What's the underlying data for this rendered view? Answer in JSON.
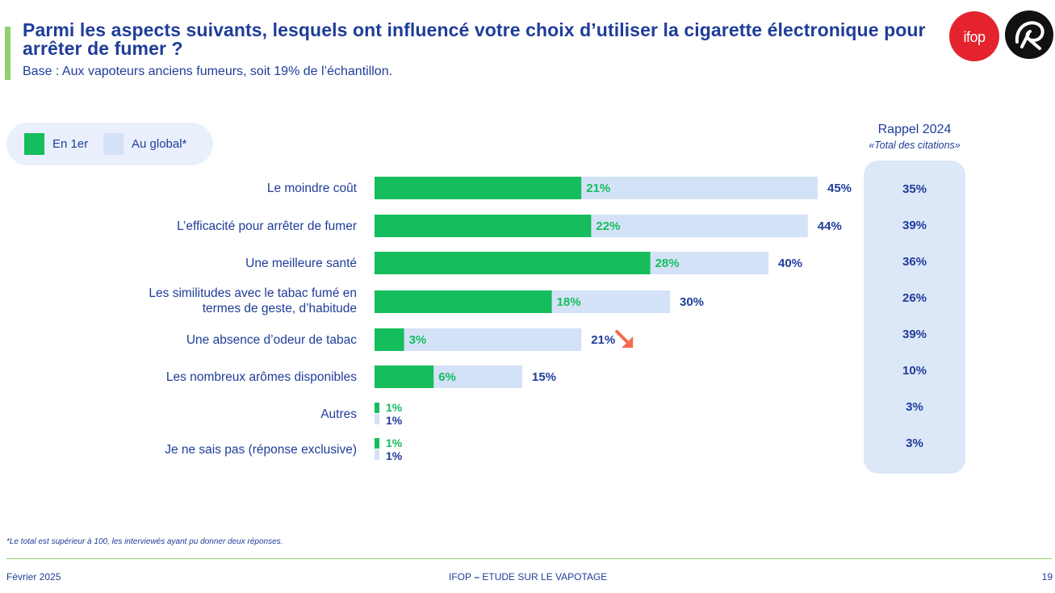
{
  "header": {
    "title": "Parmi les aspects suivants, lesquels ont influencé votre choix d’utiliser la cigarette électronique pour arrêter de fumer ?",
    "subtitle": "Base : Aux vapoteurs anciens fumeurs, soit 19% de l’échantillon.",
    "logo_text": "ifop"
  },
  "legend": {
    "first_label": "En 1er",
    "global_label": "Au global*"
  },
  "rappel": {
    "title": "Rappel 2024",
    "subtitle": "«Total des citations»",
    "values": [
      "35%",
      "39%",
      "36%",
      "26%",
      "39%",
      "10%",
      "3%",
      "3%"
    ]
  },
  "colors": {
    "first": "#15bd5d",
    "global": "#d4e2f7",
    "text": "#1f3d99",
    "first_label": "#15bd5d",
    "arrow": "#f26b4f",
    "accent": "#8fd16a"
  },
  "chart_data": {
    "type": "bar",
    "orientation": "horizontal",
    "title": "Parmi les aspects suivants, lesquels ont influencé votre choix d’utiliser la cigarette électronique pour arrêter de fumer ?",
    "xlabel": "",
    "ylabel": "",
    "xlim": [
      0,
      100
    ],
    "grid": false,
    "legend_position": "top-left",
    "categories": [
      [
        "Le moindre coût"
      ],
      [
        "L’efficacité pour arrêter de fumer"
      ],
      [
        "Une meilleure santé"
      ],
      [
        "Les similitudes avec le tabac fumé en",
        "termes de geste, d’habitude"
      ],
      [
        "Une absence d’odeur de tabac"
      ],
      [
        "Les nombreux arômes disponibles"
      ],
      [
        "Autres"
      ],
      [
        "Je ne sais pas (réponse exclusive)"
      ]
    ],
    "series": [
      {
        "name": "En 1er",
        "values": [
          21,
          22,
          28,
          18,
          3,
          6,
          1,
          1
        ]
      },
      {
        "name": "Au global*",
        "values": [
          45,
          44,
          40,
          30,
          21,
          15,
          1,
          1
        ]
      }
    ],
    "rappel_2024": [
      35,
      39,
      36,
      26,
      39,
      10,
      3,
      3
    ],
    "annotations": [
      {
        "category_index": 4,
        "type": "arrow-down",
        "meaning": "significant decrease vs 2024"
      }
    ]
  },
  "footer": {
    "footnote": "*Le total est supérieur à 100, les interviewés ayant pu donner deux réponses.",
    "date": "Février 2025",
    "center_prefix": "IFOP",
    "center_sep": " – ",
    "center_text": "ETUDE SUR LE VAPOTAGE",
    "page": "19"
  }
}
